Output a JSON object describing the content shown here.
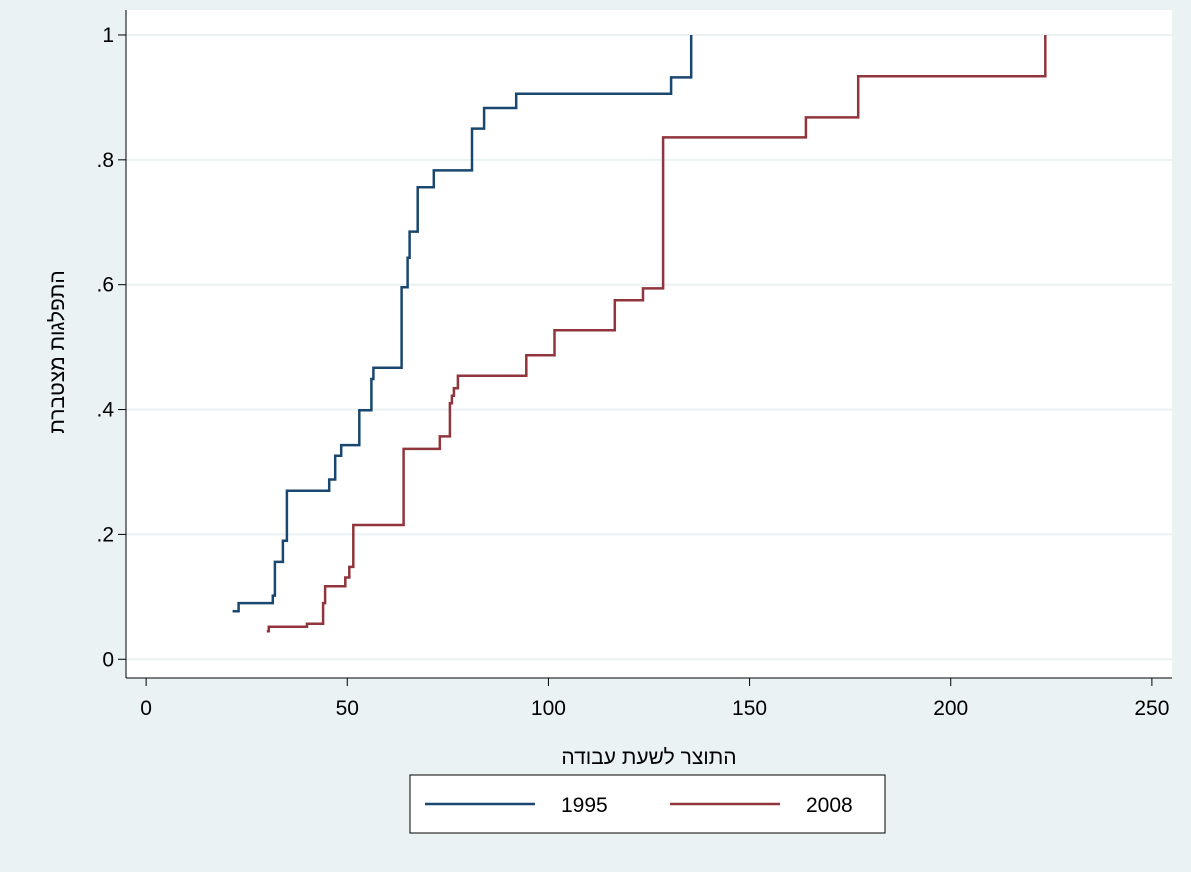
{
  "chart_data": {
    "type": "line",
    "step": true,
    "xlabel": "התוצר לשעת עבודה",
    "ylabel": "התפלגות מצטברת",
    "xlim": [
      -5,
      255
    ],
    "ylim": [
      -0.03,
      1.04
    ],
    "x_ticks": [
      0,
      50,
      100,
      150,
      200,
      250
    ],
    "x_tick_labels": [
      "0",
      "50",
      "100",
      "150",
      "200",
      "250"
    ],
    "y_ticks": [
      0,
      0.2,
      0.4,
      0.6,
      0.8,
      1
    ],
    "y_tick_labels": [
      "0",
      ".2",
      ".4",
      ".6",
      ".8",
      "1"
    ],
    "grid": true,
    "legend_position": "bottom",
    "series": [
      {
        "name": "1995",
        "color": "#1a476f",
        "points": [
          [
            21.5,
            0.077
          ],
          [
            23.0,
            0.077
          ],
          [
            23.0,
            0.09
          ],
          [
            31.5,
            0.09
          ],
          [
            31.5,
            0.102
          ],
          [
            32.0,
            0.102
          ],
          [
            32.0,
            0.156
          ],
          [
            34.0,
            0.156
          ],
          [
            34.0,
            0.19
          ],
          [
            35.0,
            0.19
          ],
          [
            35.0,
            0.27
          ],
          [
            45.5,
            0.27
          ],
          [
            45.5,
            0.288
          ],
          [
            47.0,
            0.288
          ],
          [
            47.0,
            0.326
          ],
          [
            48.5,
            0.326
          ],
          [
            48.5,
            0.343
          ],
          [
            53.0,
            0.343
          ],
          [
            53.0,
            0.399
          ],
          [
            56.0,
            0.399
          ],
          [
            56.0,
            0.449
          ],
          [
            56.5,
            0.449
          ],
          [
            56.5,
            0.467
          ],
          [
            63.5,
            0.467
          ],
          [
            63.5,
            0.596
          ],
          [
            65.0,
            0.596
          ],
          [
            65.0,
            0.643
          ],
          [
            65.5,
            0.643
          ],
          [
            65.5,
            0.685
          ],
          [
            67.5,
            0.685
          ],
          [
            67.5,
            0.756
          ],
          [
            71.5,
            0.756
          ],
          [
            71.5,
            0.783
          ],
          [
            81.0,
            0.783
          ],
          [
            81.0,
            0.85
          ],
          [
            84.0,
            0.85
          ],
          [
            84.0,
            0.883
          ],
          [
            92.0,
            0.883
          ],
          [
            92.0,
            0.906
          ],
          [
            130.5,
            0.906
          ],
          [
            130.5,
            0.932
          ],
          [
            135.5,
            0.932
          ],
          [
            135.5,
            1.0
          ]
        ]
      },
      {
        "name": "2008",
        "color": "#90353b",
        "points": [
          [
            30.0,
            0.045
          ],
          [
            30.5,
            0.045
          ],
          [
            30.5,
            0.052
          ],
          [
            40.0,
            0.052
          ],
          [
            40.0,
            0.057
          ],
          [
            44.0,
            0.057
          ],
          [
            44.0,
            0.09
          ],
          [
            44.5,
            0.09
          ],
          [
            44.5,
            0.117
          ],
          [
            49.5,
            0.117
          ],
          [
            49.5,
            0.131
          ],
          [
            50.5,
            0.131
          ],
          [
            50.5,
            0.148
          ],
          [
            51.5,
            0.148
          ],
          [
            51.5,
            0.215
          ],
          [
            64.0,
            0.215
          ],
          [
            64.0,
            0.337
          ],
          [
            73.0,
            0.337
          ],
          [
            73.0,
            0.357
          ],
          [
            75.5,
            0.357
          ],
          [
            75.5,
            0.41
          ],
          [
            76.0,
            0.41
          ],
          [
            76.0,
            0.422
          ],
          [
            76.5,
            0.422
          ],
          [
            76.5,
            0.434
          ],
          [
            77.5,
            0.434
          ],
          [
            77.5,
            0.454
          ],
          [
            94.5,
            0.454
          ],
          [
            94.5,
            0.487
          ],
          [
            101.5,
            0.487
          ],
          [
            101.5,
            0.527
          ],
          [
            116.5,
            0.527
          ],
          [
            116.5,
            0.575
          ],
          [
            123.5,
            0.575
          ],
          [
            123.5,
            0.594
          ],
          [
            128.5,
            0.594
          ],
          [
            128.5,
            0.836
          ],
          [
            164.0,
            0.836
          ],
          [
            164.0,
            0.868
          ],
          [
            177.0,
            0.868
          ],
          [
            177.0,
            0.934
          ],
          [
            223.5,
            0.934
          ],
          [
            223.5,
            1.0
          ]
        ]
      }
    ]
  }
}
